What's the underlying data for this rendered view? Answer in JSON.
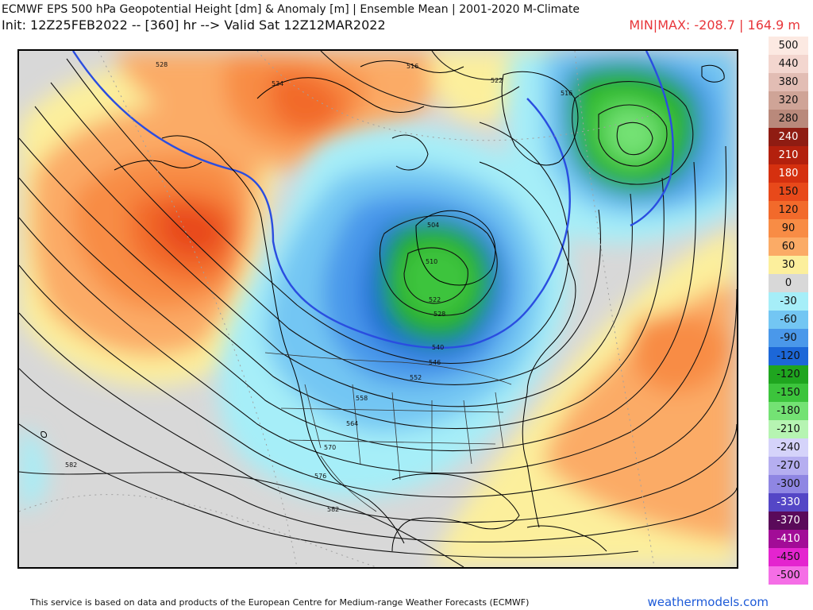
{
  "header": {
    "title": "ECMWF EPS 500 hPa Geopotential Height [dm] & Anomaly [m] | Ensemble Mean | 2001-2020 M-Climate",
    "subtitle": "Init: 12Z25FEB2022 -- [360] hr --> Valid Sat 12Z12MAR2022",
    "minmax": "MIN|MAX: -208.7 | 164.9 m"
  },
  "legend": {
    "items": [
      {
        "label": "500",
        "color": "#fce9e2"
      },
      {
        "label": "440",
        "color": "#f3d6cf"
      },
      {
        "label": "380",
        "color": "#e2bdb4"
      },
      {
        "label": "320",
        "color": "#cfa497"
      },
      {
        "label": "280",
        "color": "#b9897b"
      },
      {
        "label": "240",
        "color": "#8f1c12"
      },
      {
        "label": "210",
        "color": "#b3200d"
      },
      {
        "label": "180",
        "color": "#d5300f"
      },
      {
        "label": "150",
        "color": "#e8491a"
      },
      {
        "label": "120",
        "color": "#f26a2b"
      },
      {
        "label": "90",
        "color": "#f88c45"
      },
      {
        "label": "60",
        "color": "#fbab66"
      },
      {
        "label": "30",
        "color": "#fcef9c"
      },
      {
        "label": "0",
        "color": "#d8d8d8"
      },
      {
        "label": "-30",
        "color": "#a6eef8"
      },
      {
        "label": "-60",
        "color": "#73c6f3"
      },
      {
        "label": "-90",
        "color": "#4a98ea"
      },
      {
        "label": "-120",
        "color": "#1c67d8"
      },
      {
        "label": "-120",
        "color": "#1fa51f"
      },
      {
        "label": "-150",
        "color": "#3cc43c"
      },
      {
        "label": "-180",
        "color": "#74e274"
      },
      {
        "label": "-210",
        "color": "#b6f4b2"
      },
      {
        "label": "-240",
        "color": "#d5d3fa"
      },
      {
        "label": "-270",
        "color": "#b5aef0"
      },
      {
        "label": "-300",
        "color": "#8f86e3"
      },
      {
        "label": "-330",
        "color": "#5446c6"
      },
      {
        "label": "-370",
        "color": "#5a0a5a"
      },
      {
        "label": "-410",
        "color": "#a20c97"
      },
      {
        "label": "-450",
        "color": "#e424cf"
      },
      {
        "label": "-500",
        "color": "#f56ee6"
      }
    ]
  },
  "map": {
    "contour_labels": [
      "528",
      "534",
      "516",
      "522",
      "516",
      "504",
      "510",
      "522",
      "528",
      "540",
      "546",
      "552",
      "558",
      "564",
      "570",
      "576",
      "582",
      "582"
    ],
    "colors": {
      "background": "#d8d8d8",
      "contour": "#111111",
      "reference_contour": "#2a4de0",
      "coastline": "#000000",
      "borders": "#333333"
    }
  },
  "footer": {
    "attribution": "This service is based on data and products of the European Centre for Medium-range Weather Forecasts (ECMWF)",
    "site": "weathermodels.com"
  }
}
